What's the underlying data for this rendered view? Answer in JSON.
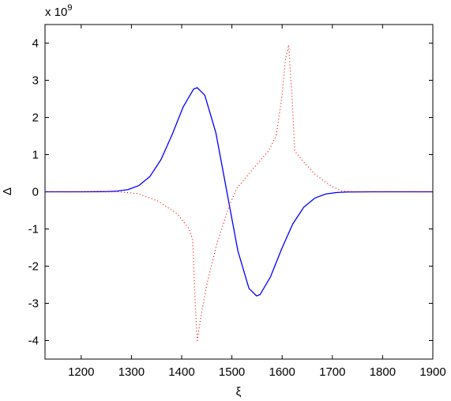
{
  "chart_data": {
    "type": "line",
    "xlabel": "ξ",
    "ylabel": "Δ",
    "y_multiplier": {
      "base": "x 10",
      "exponent": "9"
    },
    "xlim": [
      1128,
      1900
    ],
    "xticks": [
      1200,
      1300,
      1400,
      1500,
      1600,
      1700,
      1800,
      1900
    ],
    "ylim": [
      -4.5,
      4.5
    ],
    "yticks": [
      -4,
      -3,
      -2,
      -1,
      0,
      1,
      2,
      3,
      4
    ],
    "grid": false,
    "series": [
      {
        "color": "#0000ff",
        "style": "solid",
        "x": [
          1128,
          1200,
          1250,
          1271,
          1293,
          1315,
          1337,
          1359,
          1381,
          1403,
          1424,
          1431,
          1446,
          1468,
          1490,
          1512,
          1534,
          1549,
          1556,
          1577,
          1599,
          1621,
          1643,
          1665,
          1687,
          1709,
          1730,
          1780,
          1900
        ],
        "values": [
          0,
          0,
          0.005,
          0.018,
          0.059,
          0.169,
          0.416,
          0.869,
          1.538,
          2.283,
          2.767,
          2.8,
          2.6,
          1.595,
          0,
          -1.595,
          -2.6,
          -2.8,
          -2.767,
          -2.283,
          -1.538,
          -0.869,
          -0.416,
          -0.169,
          -0.059,
          -0.018,
          -0.005,
          0,
          0
        ]
      },
      {
        "color": "#ff0000",
        "style": "dotted",
        "x": [
          1128,
          1274,
          1313,
          1353,
          1392,
          1415,
          1422,
          1427,
          1431,
          1439,
          1450,
          1470,
          1494,
          1510,
          1541,
          1573,
          1588,
          1599,
          1607,
          1613,
          1620,
          1625,
          1643,
          1667,
          1698,
          1719,
          1746,
          1900
        ],
        "values": [
          0,
          0,
          -0.05,
          -0.25,
          -0.6,
          -1.0,
          -1.3,
          -3.0,
          -4.0,
          -3.3,
          -2.5,
          -1.4,
          -0.4,
          0.1,
          0.6,
          1.1,
          1.5,
          2.5,
          3.6,
          3.95,
          2.5,
          1.1,
          0.8,
          0.45,
          0.15,
          0.02,
          0,
          0
        ]
      }
    ]
  }
}
